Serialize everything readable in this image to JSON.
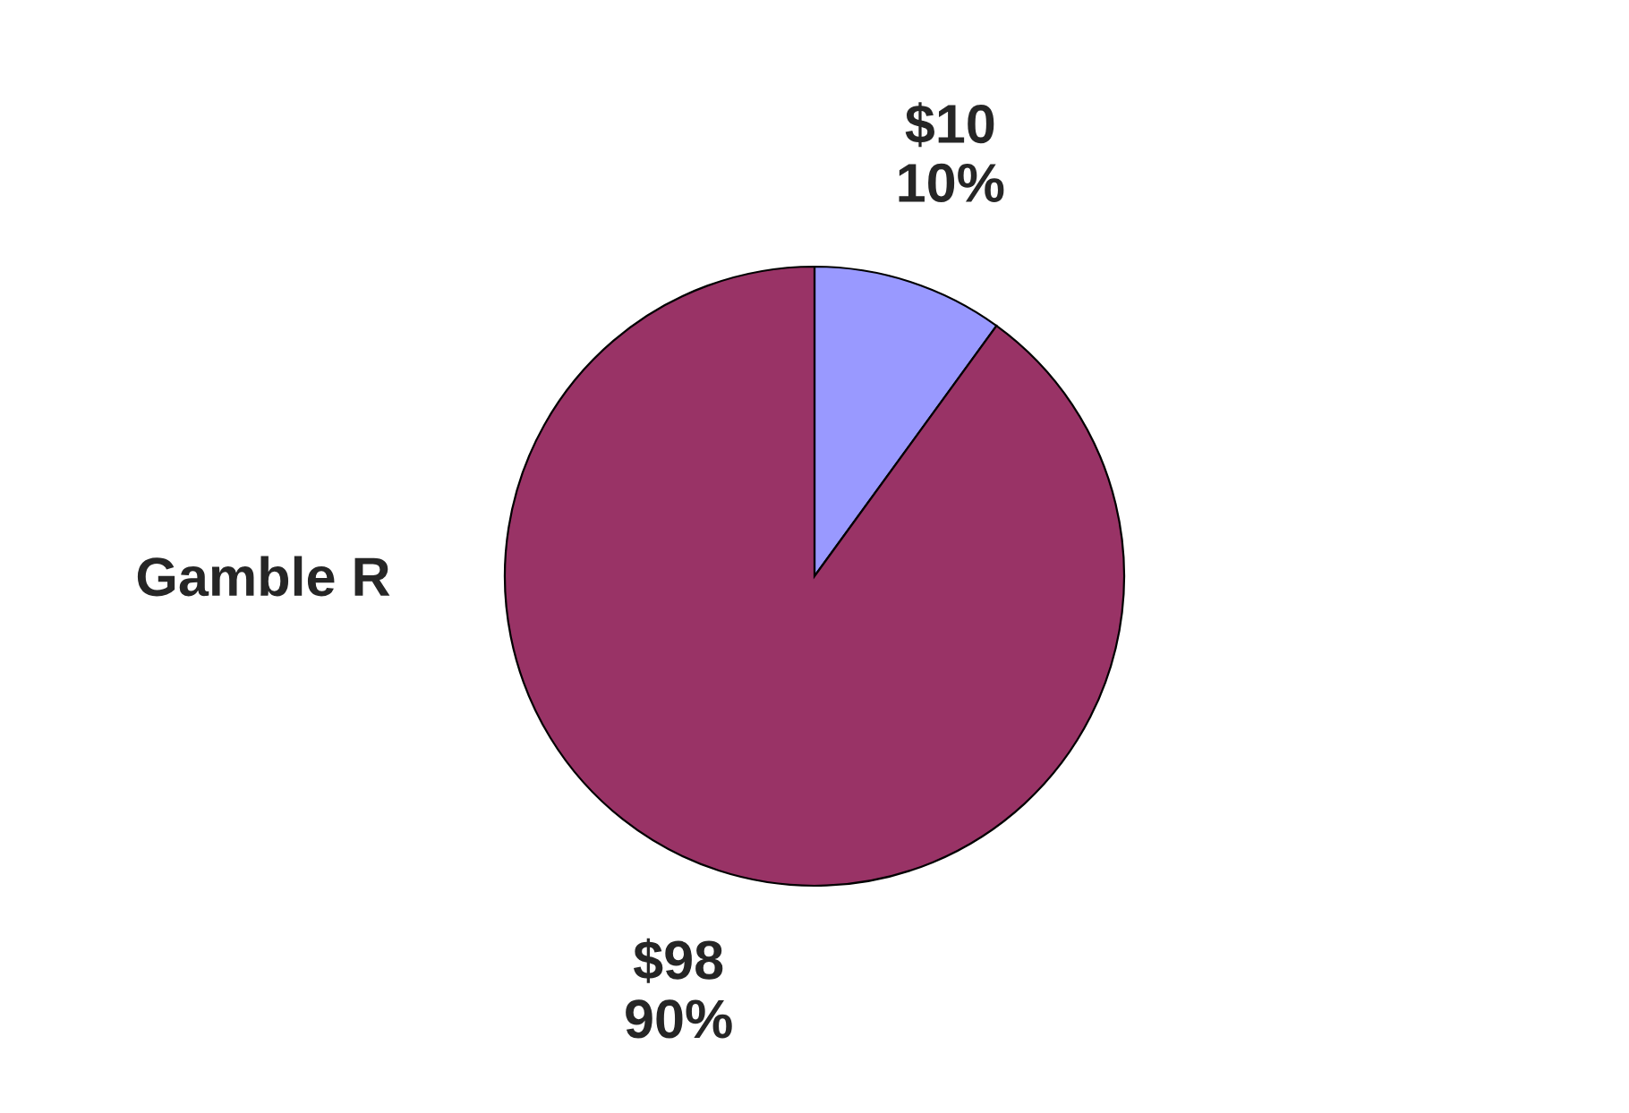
{
  "chart_data": {
    "type": "pie",
    "title": "Gamble R",
    "categories": [
      "$10",
      "$98"
    ],
    "values": [
      10,
      90
    ],
    "value_labels": [
      "10%",
      "90%"
    ],
    "colors": [
      "#9999ff",
      "#993366"
    ],
    "legend": false
  }
}
